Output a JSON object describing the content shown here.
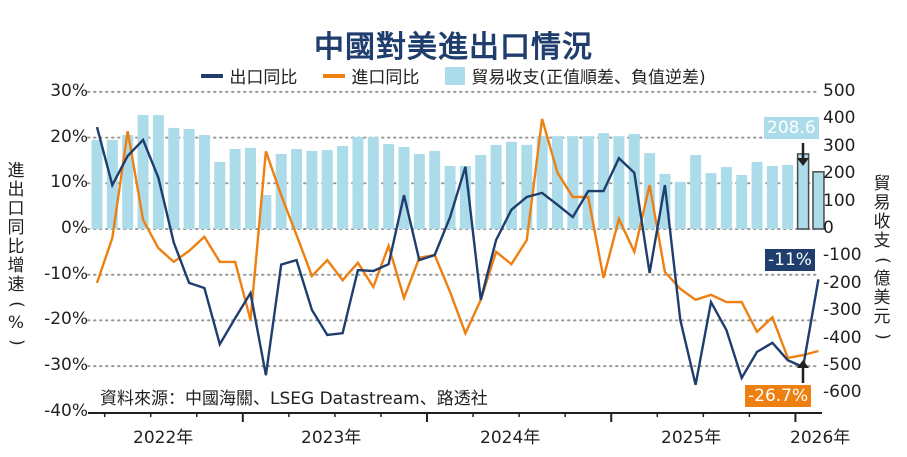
{
  "chart_data": {
    "type": "line",
    "title": "中國對美進出口情況",
    "legend": [
      "出口同比",
      "進口同比",
      "貿易收支(正值順差、負值逆差)"
    ],
    "legend_placement": "top-center",
    "ylabel_left": "進出口同比增速(%)",
    "ylabel_right": "貿易收支(億美元)",
    "ylim_left": [
      -40,
      30
    ],
    "yticks_left": [
      "30%",
      "20%",
      "10%",
      "0%",
      "-10%",
      "-20%",
      "-30%",
      "-40%"
    ],
    "ylim_right": [
      -600,
      500
    ],
    "yticks_right": [
      "500",
      "400",
      "300",
      "200",
      "100",
      "0",
      "-100",
      "-200",
      "-300",
      "-400",
      "-500",
      "-600"
    ],
    "x_start": "2022-03",
    "x_end": "2026-01",
    "xtick_labels": [
      "2022年",
      "2023年",
      "2024年",
      "2025年",
      "2026年"
    ],
    "grid": "dotted-horizontal",
    "series": [
      {
        "name": "出口同比",
        "type": "line",
        "axis": "left",
        "color": "#1f3e6e",
        "values": [
          22.3,
          9.6,
          16,
          19.5,
          11.2,
          -3,
          -11.8,
          -12.9,
          -25.2,
          -19.5,
          -14,
          -32,
          -7.8,
          -6.8,
          -17.7,
          -23.2,
          -22.8,
          -9,
          -9.2,
          -7.7,
          7.4,
          -6.8,
          -5.7,
          2.6,
          13.6,
          -15.5,
          -2.4,
          4.2,
          7,
          7.9,
          5.3,
          2.6,
          8.3,
          8.3,
          15.5,
          12.3,
          -9.6,
          9.6,
          -19.9,
          -34.1,
          -16,
          -22.1,
          -32.6,
          -26.9,
          -24.9,
          -28.7,
          -30.2,
          -11
        ]
      },
      {
        "name": "進口同比",
        "type": "line",
        "axis": "left",
        "color": "#ee8012",
        "values": [
          -11.8,
          -2,
          21.4,
          2,
          -4.2,
          -7.2,
          -4.8,
          -1.7,
          -7.2,
          -7.2,
          -19.9,
          17,
          7.4,
          -1.3,
          -10.3,
          -6.8,
          -11.2,
          -7.4,
          -12.7,
          -3.7,
          -15.1,
          -6.3,
          -5.7,
          -13.8,
          -22.8,
          -15.5,
          -5,
          -7.7,
          -2.4,
          24.1,
          12.3,
          7,
          7,
          -10.7,
          2.2,
          -5,
          9.6,
          -9.4,
          -13.1,
          -15.5,
          -14.4,
          -16,
          -16,
          -22.5,
          -19.3,
          -28.2,
          -27.6,
          -26.7
        ]
      },
      {
        "name": "貿易收支(正值順差、負值逆差)",
        "type": "bar",
        "axis": "right",
        "color": "#acdcea",
        "values": [
          325,
          325,
          343,
          416,
          416,
          369,
          365,
          343,
          245,
          292,
          296,
          124,
          274,
          292,
          285,
          288,
          303,
          336,
          336,
          310,
          299,
          274,
          285,
          230,
          230,
          270,
          307,
          318,
          307,
          339,
          339,
          339,
          339,
          350,
          339,
          347,
          277,
          201,
          172,
          270,
          204,
          226,
          197,
          245,
          230,
          234,
          274,
          208.6
        ]
      }
    ],
    "annotations": [
      {
        "text": "208.6",
        "series": "貿易收支",
        "color": "#acdcea"
      },
      {
        "text": "-11%",
        "series": "出口同比",
        "color": "#1f3e6e"
      },
      {
        "text": "-26.7%",
        "series": "進口同比",
        "color": "#ee8012"
      }
    ],
    "source": "資料來源：中國海關、LSEG Datastream、路透社"
  }
}
